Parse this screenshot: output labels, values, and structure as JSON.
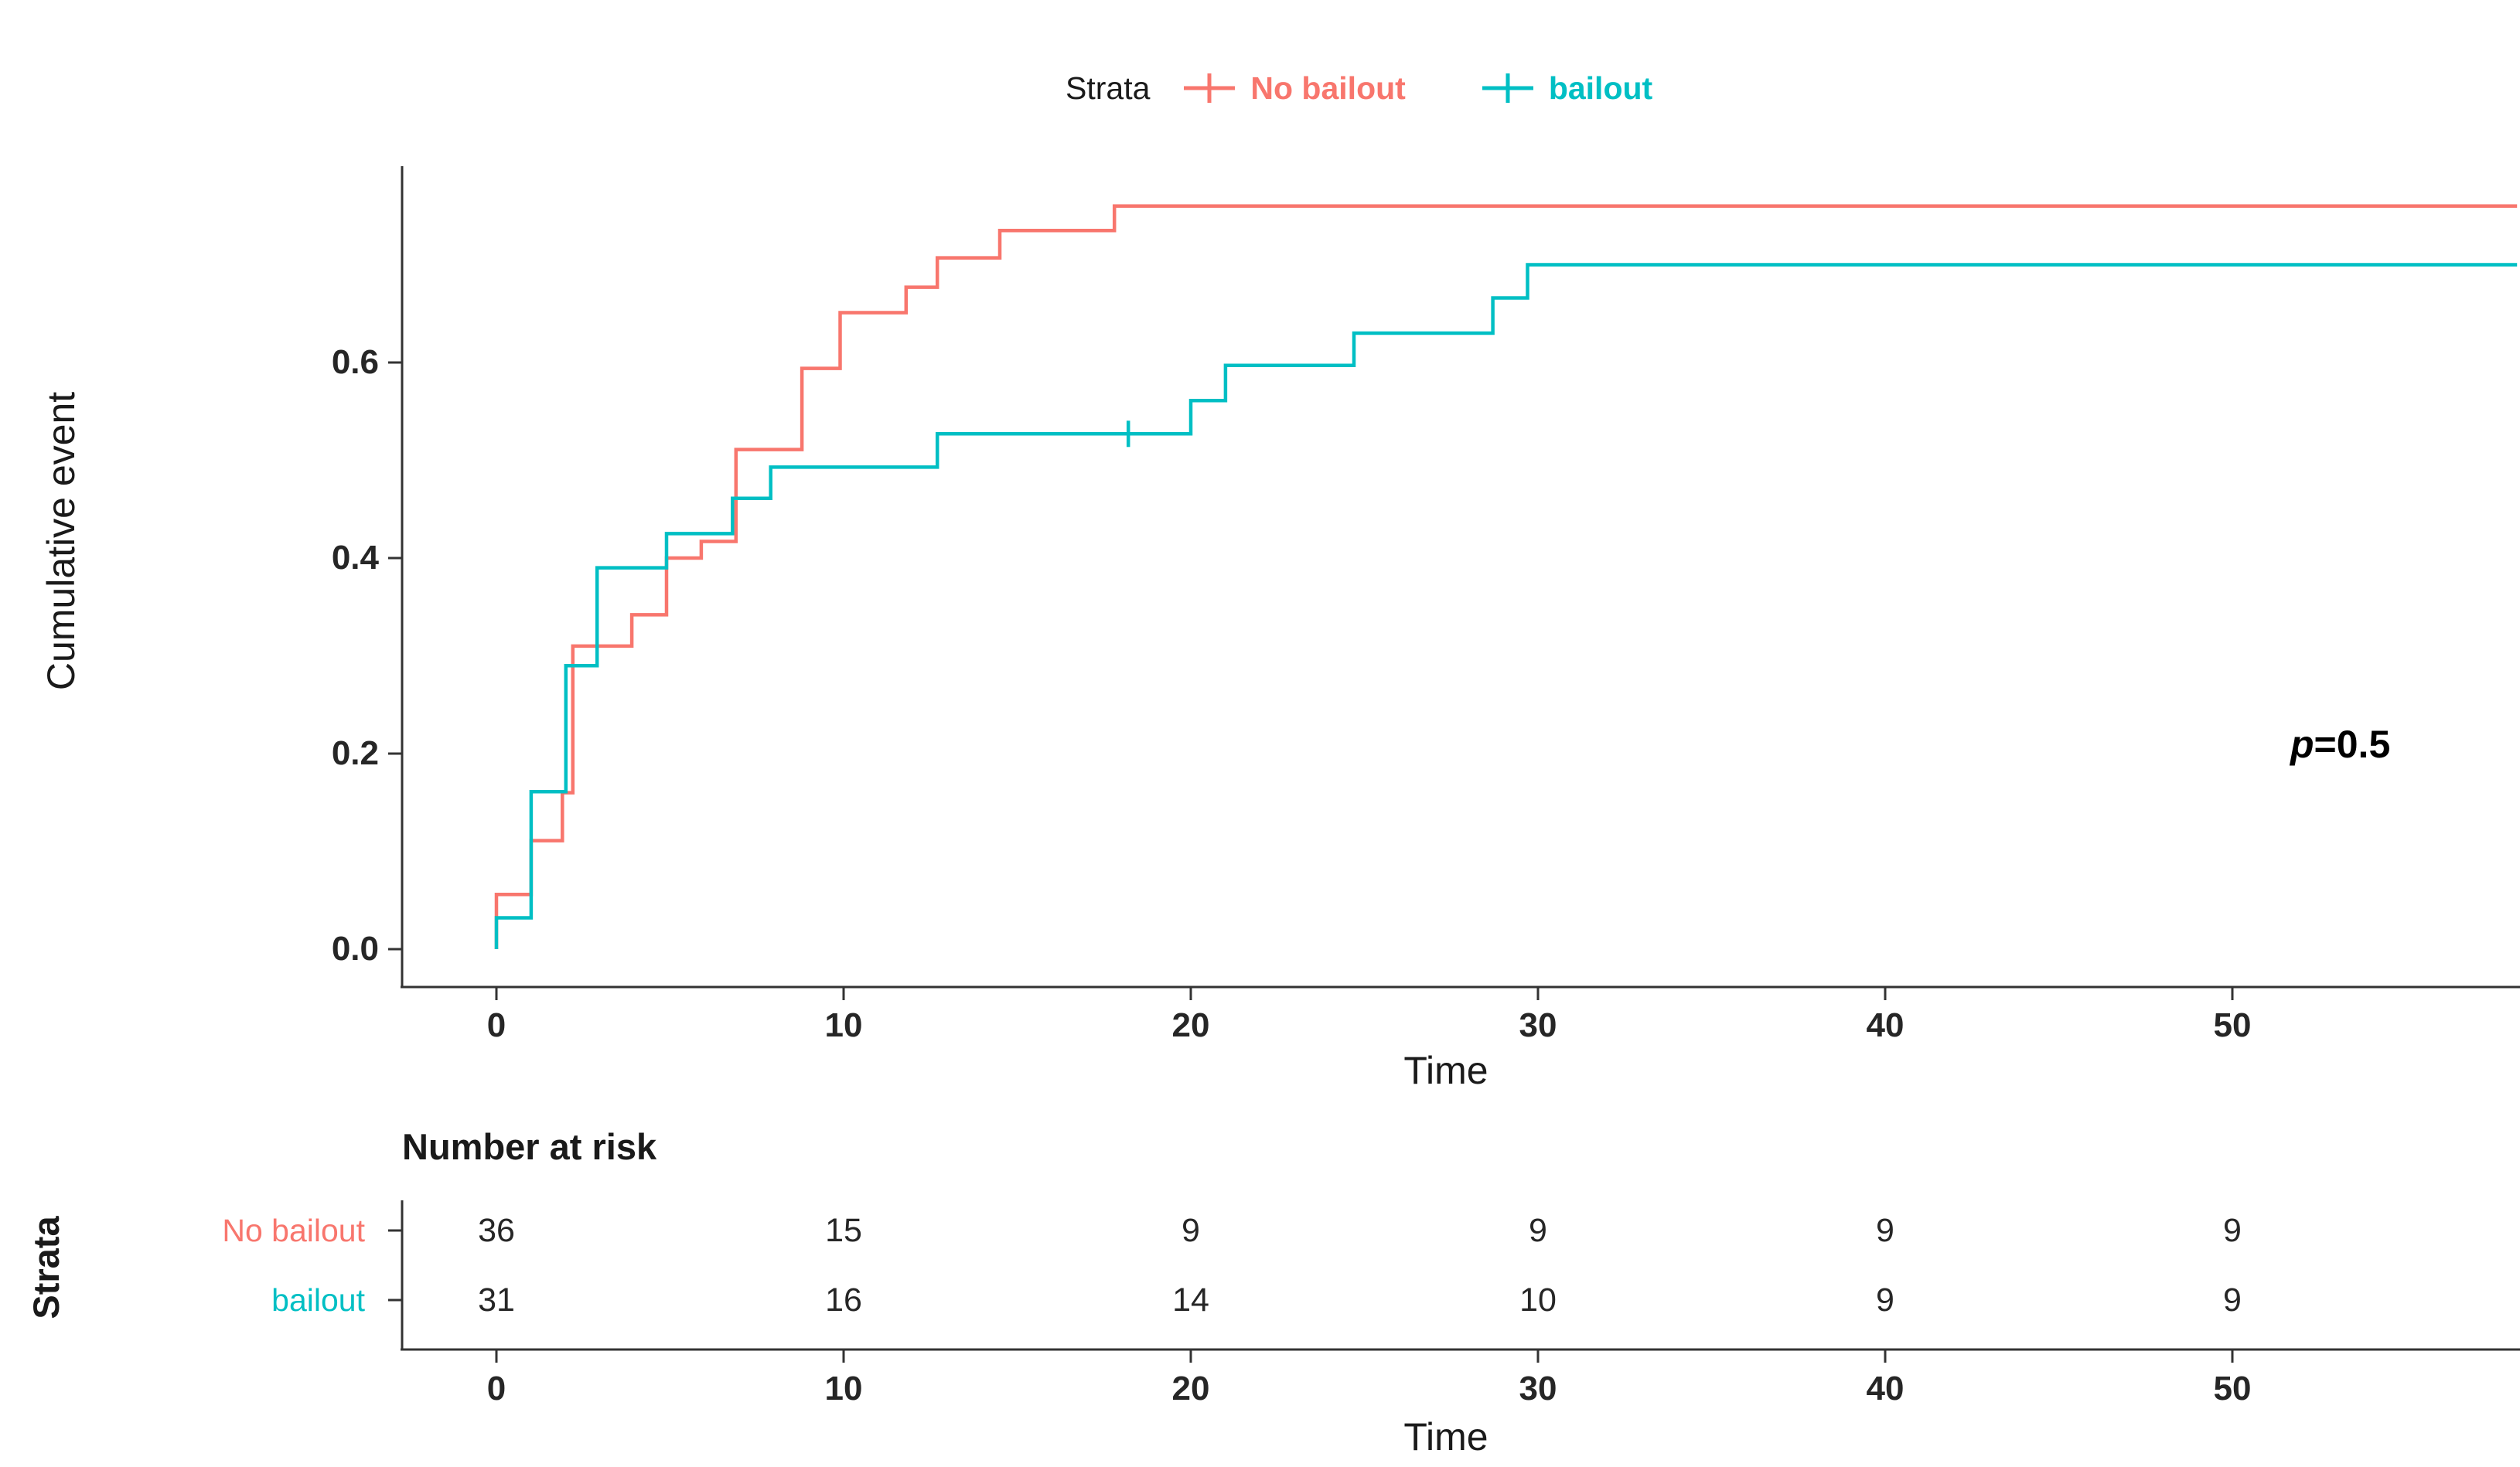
{
  "legend": {
    "title": "Strata",
    "items": [
      {
        "label": "No bailout",
        "color": "#F8766D"
      },
      {
        "label": "bailout",
        "color": "#00BFC4"
      }
    ]
  },
  "annotation": {
    "symbol": "p",
    "value": "=0.5"
  },
  "chart_data": {
    "type": "line",
    "subtype": "kaplan_meier_cumulative_event_step",
    "title": "",
    "xlabel": "Time",
    "ylabel": "Cumulative event",
    "xlim": [
      -2.7,
      58.3
    ],
    "ylim": [
      -0.04,
      0.8
    ],
    "grid": false,
    "legend_position": "top",
    "xticks": [
      0,
      10,
      20,
      30,
      40,
      50
    ],
    "xticklabels": [
      "0",
      "10",
      "20",
      "30",
      "40",
      "50"
    ],
    "yticks": [
      0.0,
      0.2,
      0.4,
      0.6
    ],
    "yticklabels": [
      "0.0",
      "0.2",
      "0.4",
      "0.6"
    ],
    "series": [
      {
        "name": "No bailout",
        "color": "#F8766D",
        "start": [
          0,
          0
        ],
        "steps": [
          [
            0,
            0.056
          ],
          [
            1,
            0.111
          ],
          [
            1.9,
            0.16
          ],
          [
            2.2,
            0.31
          ],
          [
            3.9,
            0.342
          ],
          [
            4.9,
            0.4
          ],
          [
            5.9,
            0.417
          ],
          [
            6.9,
            0.511
          ],
          [
            8.8,
            0.594
          ],
          [
            9.9,
            0.651
          ],
          [
            11.8,
            0.677
          ],
          [
            12.7,
            0.707
          ],
          [
            14.5,
            0.735
          ],
          [
            17.8,
            0.76
          ]
        ],
        "end_time": 58.2,
        "censors": []
      },
      {
        "name": "bailout",
        "color": "#00BFC4",
        "start": [
          0,
          0
        ],
        "steps": [
          [
            0,
            0.032
          ],
          [
            1,
            0.161
          ],
          [
            2,
            0.29
          ],
          [
            2.9,
            0.39
          ],
          [
            4.9,
            0.425
          ],
          [
            6.8,
            0.461
          ],
          [
            7.9,
            0.493
          ],
          [
            12.7,
            0.527
          ],
          [
            20,
            0.561
          ],
          [
            21,
            0.597
          ],
          [
            24.7,
            0.63
          ],
          [
            28.7,
            0.666
          ],
          [
            29.7,
            0.7
          ]
        ],
        "end_time": 58.2,
        "censors": [
          [
            18.2,
            0.527
          ]
        ]
      }
    ],
    "pvalue_text": "p=0.5"
  },
  "risk_table": {
    "title": "Number at risk",
    "axis_label": "Strata",
    "xlabel": "Time",
    "xticks": [
      0,
      10,
      20,
      30,
      40,
      50
    ],
    "xticklabels": [
      "0",
      "10",
      "20",
      "30",
      "40",
      "50"
    ],
    "rows": [
      {
        "label": "No bailout",
        "color": "#F8766D",
        "values": [
          36,
          15,
          9,
          9,
          9,
          9
        ]
      },
      {
        "label": "bailout",
        "color": "#00BFC4",
        "values": [
          31,
          16,
          14,
          10,
          9,
          9
        ]
      }
    ]
  }
}
